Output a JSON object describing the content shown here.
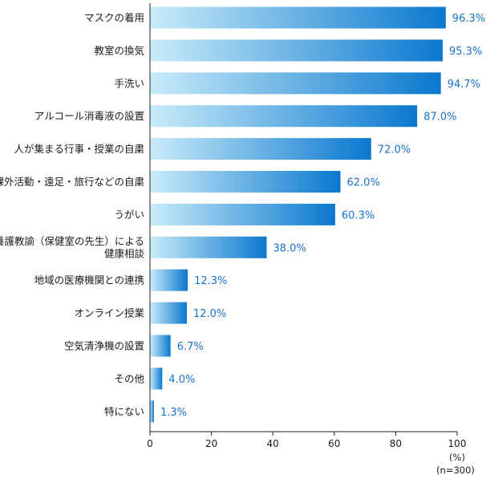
{
  "chart_data": {
    "type": "bar",
    "orientation": "horizontal",
    "categories": [
      [
        "マスクの着用"
      ],
      [
        "教室の換気"
      ],
      [
        "手洗い"
      ],
      [
        "アルコール消毒液の設置"
      ],
      [
        "人が集まる行事・授業の自粛"
      ],
      [
        "課外活動・遠足・旅行などの自粛"
      ],
      [
        "うがい"
      ],
      [
        "養護教諭（保健室の先生）による",
        "健康相談"
      ],
      [
        "地域の医療機関との連携"
      ],
      [
        "オンライン授業"
      ],
      [
        "空気清浄機の設置"
      ],
      [
        "その他"
      ],
      [
        "特にない"
      ]
    ],
    "values": [
      96.3,
      95.3,
      94.7,
      87.0,
      72.0,
      62.0,
      60.3,
      38.0,
      12.3,
      12.0,
      6.7,
      4.0,
      1.3
    ],
    "value_labels": [
      "96.3%",
      "95.3%",
      "94.7%",
      "87.0%",
      "72.0%",
      "62.0%",
      "60.3%",
      "38.0%",
      "12.3%",
      "12.0%",
      "6.7%",
      "4.0%",
      "1.3%"
    ],
    "xlim": [
      0,
      100
    ],
    "xticks": [
      0,
      20,
      40,
      60,
      80,
      100
    ],
    "unit_label": "(%)",
    "sample_label": "(n=300)",
    "grid": false,
    "colors": {
      "bar_start": "#c9ecfa",
      "bar_end": "#0a78cf",
      "value_text": "#1a73c8",
      "axis": "#222222",
      "text": "#1a1a1a"
    }
  }
}
